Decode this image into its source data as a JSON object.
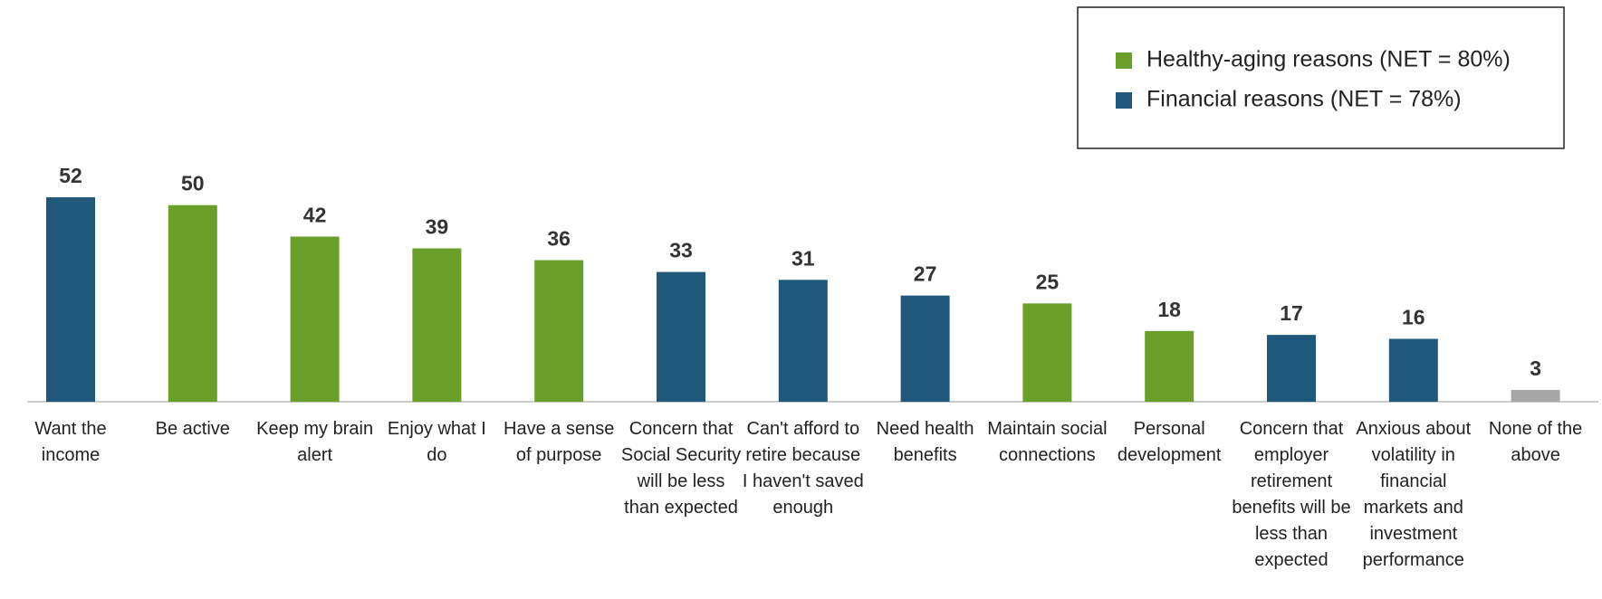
{
  "chart_data": {
    "type": "bar",
    "categories": [
      "Want the income",
      "Be active",
      "Keep my brain alert",
      "Enjoy what I do",
      "Have a sense of purpose",
      "Concern that Social Security will be less than expected",
      "Can't afford to retire because I haven't saved enough",
      "Need health benefits",
      "Maintain social connections",
      "Personal development",
      "Concern that employer retirement benefits will be less than expected",
      "Anxious about volatility in financial markets and investment performance",
      "None of the above"
    ],
    "values": [
      52,
      50,
      42,
      39,
      36,
      33,
      31,
      27,
      25,
      18,
      17,
      16,
      3
    ],
    "colors": [
      "#1f587a",
      "#6a9f29",
      "#6a9f29",
      "#6a9f29",
      "#6a9f29",
      "#1f587a",
      "#1f587a",
      "#1f587a",
      "#6a9f29",
      "#6a9f29",
      "#1f587a",
      "#1f587a",
      "#a6a6a6"
    ],
    "legend": [
      {
        "name": "Healthy-aging reasons (NET = 80%)",
        "color": "#6a9f29"
      },
      {
        "name": "Financial reasons (NET = 78%)",
        "color": "#1f587a"
      }
    ]
  }
}
